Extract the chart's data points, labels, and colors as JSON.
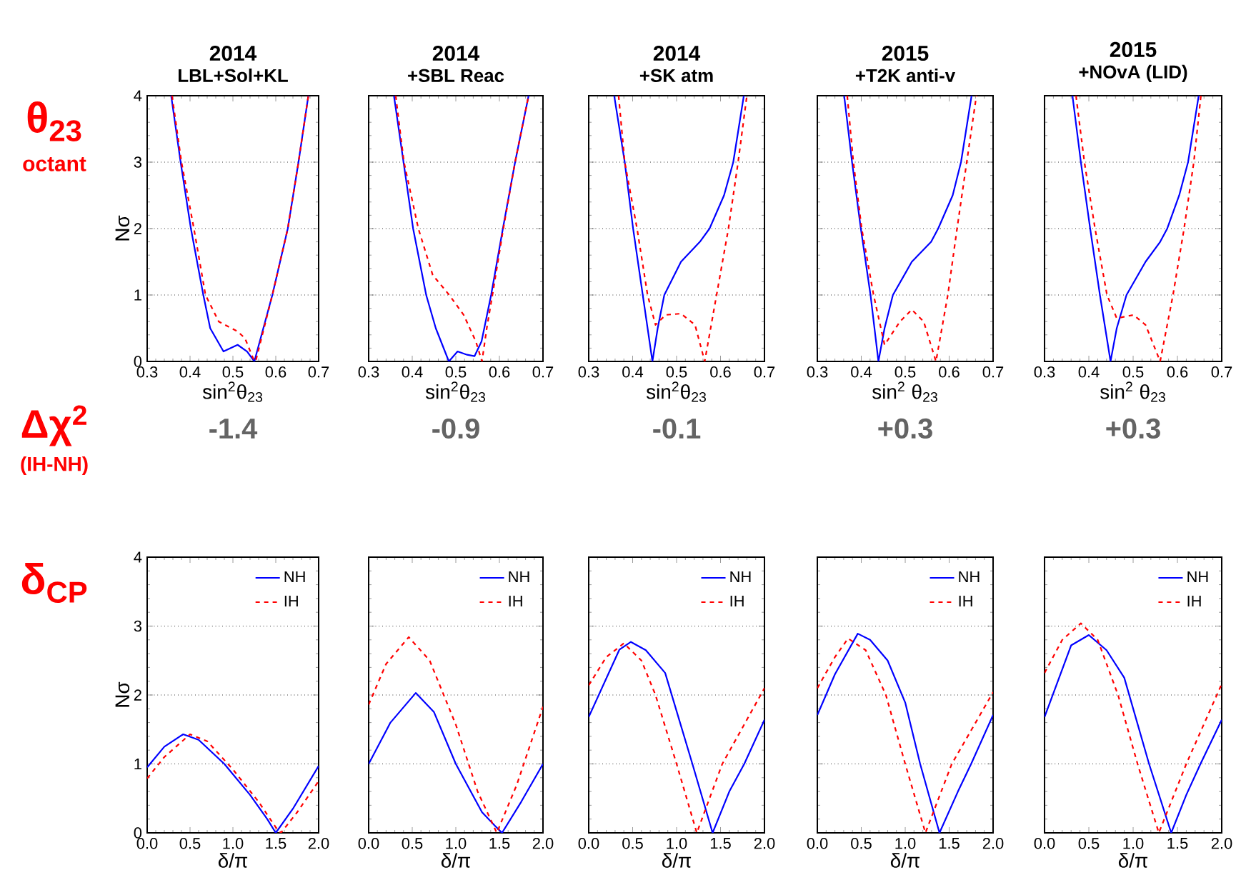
{
  "chart_data": [
    {
      "type": "line",
      "title": "2014",
      "subtitle": "LBL+Sol+KL",
      "xlabel": "sin$^{2}$θ$_{23}$",
      "ylabel": "Nσ",
      "xlim": [
        0.3,
        0.7
      ],
      "ylim": [
        0,
        4
      ],
      "xticks": [
        0.3,
        0.4,
        0.5,
        0.6,
        0.7
      ],
      "yticks": [
        0,
        1,
        2,
        3,
        4
      ],
      "grid": "y",
      "annotations": [
        "θ$_{23}$",
        "octant"
      ],
      "series": [
        {
          "color": "#0000ff",
          "x": [
            0.356,
            0.378,
            0.402,
            0.431,
            0.447,
            0.478,
            0.511,
            0.533,
            0.55,
            0.592,
            0.628,
            0.653,
            0.676
          ],
          "values": [
            4,
            3,
            2,
            1,
            0.5,
            0.15,
            0.25,
            0.15,
            0,
            1,
            2,
            3,
            4
          ]
        },
        {
          "color": "#ff0000",
          "line_style": "dashed",
          "x": [
            0.358,
            0.38,
            0.409,
            0.436,
            0.467,
            0.511,
            0.528,
            0.547,
            0.553,
            0.592,
            0.628,
            0.653,
            0.676
          ],
          "values": [
            4,
            3,
            2,
            1,
            0.6,
            0.45,
            0.35,
            0.05,
            0,
            1,
            2,
            3,
            4
          ]
        }
      ]
    },
    {
      "type": "line",
      "title": "2014",
      "subtitle": "+SBL Reac",
      "xlabel": "sin$^{2}$θ$_{23}$",
      "xlim": [
        0.3,
        0.7
      ],
      "ylim": [
        0,
        4
      ],
      "xticks": [
        0.3,
        0.4,
        0.5,
        0.6,
        0.7
      ],
      "yticks": [
        0,
        1,
        2,
        3,
        4
      ],
      "grid": "y",
      "tick_labels": "x",
      "series": [
        {
          "color": "#0000ff",
          "x": [
            0.358,
            0.38,
            0.402,
            0.432,
            0.454,
            0.484,
            0.504,
            0.526,
            0.543,
            0.559,
            0.581,
            0.608,
            0.636,
            0.667
          ],
          "values": [
            4,
            3,
            2,
            1,
            0.5,
            0,
            0.15,
            0.1,
            0.08,
            0.3,
            1,
            2,
            3,
            4
          ]
        },
        {
          "color": "#ff0000",
          "line_style": "dashed",
          "x": [
            0.362,
            0.381,
            0.414,
            0.447,
            0.485,
            0.518,
            0.546,
            0.56,
            0.571,
            0.584,
            0.609,
            0.636,
            0.667
          ],
          "values": [
            4,
            3,
            2,
            1.3,
            1.0,
            0.7,
            0.3,
            0,
            0.5,
            1,
            2,
            3,
            4
          ]
        }
      ]
    },
    {
      "type": "line",
      "title": "2014",
      "subtitle": "+SK atm",
      "xlabel": "sin$^{2}$θ$_{23}$",
      "xlim": [
        0.3,
        0.7
      ],
      "ylim": [
        0,
        4
      ],
      "xticks": [
        0.3,
        0.4,
        0.5,
        0.6,
        0.7
      ],
      "yticks": [
        0,
        1,
        2,
        3,
        4
      ],
      "grid": "y",
      "tick_labels": "x",
      "series": [
        {
          "color": "#0000ff",
          "x": [
            0.358,
            0.382,
            0.401,
            0.423,
            0.445,
            0.457,
            0.472,
            0.51,
            0.553,
            0.575,
            0.608,
            0.629,
            0.653
          ],
          "values": [
            4,
            3,
            2,
            1,
            0,
            0.5,
            1,
            1.5,
            1.8,
            2,
            2.5,
            3,
            4
          ]
        },
        {
          "color": "#ff0000",
          "line_style": "dashed",
          "x": [
            0.368,
            0.382,
            0.41,
            0.434,
            0.452,
            0.475,
            0.51,
            0.542,
            0.564,
            0.591,
            0.618,
            0.64,
            0.66
          ],
          "values": [
            4,
            3,
            2,
            1,
            0.55,
            0.7,
            0.72,
            0.55,
            0,
            1,
            2,
            3,
            4
          ]
        }
      ]
    },
    {
      "type": "line",
      "title": "2015",
      "subtitle": "+T2K anti-v",
      "xlabel": "sin$^{2}$ θ$_{23}$",
      "xlim": [
        0.3,
        0.7
      ],
      "ylim": [
        0,
        4
      ],
      "xticks": [
        0.3,
        0.4,
        0.5,
        0.6,
        0.7
      ],
      "yticks": [
        0,
        1,
        2,
        3,
        4
      ],
      "grid": "y",
      "tick_labels": "x",
      "series": [
        {
          "color": "#0000ff",
          "x": [
            0.361,
            0.379,
            0.399,
            0.421,
            0.439,
            0.453,
            0.472,
            0.515,
            0.559,
            0.575,
            0.608,
            0.627,
            0.651
          ],
          "values": [
            4,
            3,
            2,
            1,
            0,
            0.5,
            1,
            1.5,
            1.8,
            2,
            2.5,
            3,
            4
          ]
        },
        {
          "color": "#ff0000",
          "line_style": "dashed",
          "x": [
            0.368,
            0.382,
            0.401,
            0.428,
            0.453,
            0.488,
            0.515,
            0.542,
            0.57,
            0.597,
            0.618,
            0.64,
            0.662
          ],
          "values": [
            4,
            3,
            2,
            1,
            0.25,
            0.6,
            0.78,
            0.6,
            0,
            1,
            2,
            3,
            4
          ]
        }
      ]
    },
    {
      "type": "line",
      "title": "2015",
      "subtitle": "+NOvA (LID)",
      "xlabel": "sin$^{2}$ θ$_{23}$",
      "xlim": [
        0.3,
        0.7
      ],
      "ylim": [
        0,
        4
      ],
      "xticks": [
        0.3,
        0.4,
        0.5,
        0.6,
        0.7
      ],
      "yticks": [
        0,
        1,
        2,
        3,
        4
      ],
      "grid": "y",
      "tick_labels": "x",
      "series": [
        {
          "color": "#0000ff",
          "x": [
            0.363,
            0.382,
            0.403,
            0.425,
            0.449,
            0.463,
            0.485,
            0.528,
            0.561,
            0.577,
            0.604,
            0.624,
            0.648
          ],
          "values": [
            4,
            3,
            2,
            1,
            0,
            0.5,
            1,
            1.5,
            1.8,
            2,
            2.5,
            3,
            4
          ]
        },
        {
          "color": "#ff0000",
          "line_style": "dashed",
          "x": [
            0.371,
            0.39,
            0.414,
            0.441,
            0.463,
            0.501,
            0.528,
            0.561,
            0.59,
            0.615,
            0.637,
            0.653
          ],
          "values": [
            4,
            3,
            2,
            1,
            0.65,
            0.7,
            0.55,
            0,
            1,
            2,
            3,
            4
          ]
        }
      ]
    },
    {
      "type": "line",
      "xlabel": "δ/π",
      "ylabel": "Nσ",
      "xlim": [
        0,
        2
      ],
      "ylim": [
        0,
        4
      ],
      "xticks": [
        {
          "value": 0,
          "label": "0.0"
        },
        0.5,
        {
          "value": 1,
          "label": "1.0"
        },
        1.5,
        {
          "value": 2,
          "label": "2.0"
        }
      ],
      "yticks": [
        0,
        1,
        2,
        3,
        4
      ],
      "grid": "y",
      "legend": "top right",
      "annotations": [
        "δ$_{CP}$"
      ],
      "series": [
        {
          "name": "NH",
          "color": "#0000ff",
          "x": [
            0,
            0.2,
            0.42,
            0.6,
            0.9,
            1.2,
            1.4,
            1.5,
            1.7,
            2.0
          ],
          "values": [
            0.95,
            1.25,
            1.43,
            1.35,
            1.0,
            0.55,
            0.2,
            0,
            0.35,
            0.97
          ]
        },
        {
          "name": "IH",
          "color": "#ff0000",
          "line_style": "dashed",
          "x": [
            0,
            0.2,
            0.5,
            0.7,
            1.0,
            1.3,
            1.5,
            1.56,
            1.75,
            2.0
          ],
          "values": [
            0.79,
            1.1,
            1.43,
            1.33,
            0.92,
            0.45,
            0.08,
            0,
            0.3,
            0.75
          ]
        }
      ]
    },
    {
      "type": "line",
      "xlabel": "δ/π",
      "xlim": [
        0,
        2
      ],
      "ylim": [
        0,
        4
      ],
      "xticks": [
        {
          "value": 0,
          "label": "0.0"
        },
        0.5,
        {
          "value": 1,
          "label": "1.0"
        },
        1.5,
        {
          "value": 2,
          "label": "2.0"
        }
      ],
      "yticks": [
        0,
        1,
        2,
        3,
        4
      ],
      "grid": "y",
      "legend": "top right",
      "tick_labels": "x",
      "series": [
        {
          "name": "NH",
          "color": "#0000ff",
          "x": [
            0,
            0.25,
            0.54,
            0.75,
            1.0,
            1.3,
            1.45,
            1.53,
            1.75,
            2.0
          ],
          "values": [
            1.0,
            1.6,
            2.03,
            1.75,
            1.0,
            0.3,
            0.1,
            0,
            0.45,
            1.0
          ]
        },
        {
          "name": "IH",
          "color": "#ff0000",
          "line_style": "dashed",
          "x": [
            0,
            0.2,
            0.46,
            0.7,
            1.0,
            1.25,
            1.47,
            1.7,
            2.0
          ],
          "values": [
            1.86,
            2.45,
            2.84,
            2.5,
            1.57,
            0.6,
            0,
            0.7,
            1.83
          ]
        }
      ]
    },
    {
      "type": "line",
      "xlabel": "δ/π",
      "xlim": [
        0,
        2
      ],
      "ylim": [
        0,
        4
      ],
      "xticks": [
        {
          "value": 0,
          "label": "0.0"
        },
        0.5,
        {
          "value": 1,
          "label": "1.0"
        },
        1.5,
        {
          "value": 2,
          "label": "2.0"
        }
      ],
      "yticks": [
        0,
        1,
        2,
        3,
        4
      ],
      "grid": "y",
      "legend": "top right",
      "tick_labels": "x",
      "series": [
        {
          "name": "NH",
          "color": "#0000ff",
          "x": [
            0,
            0.35,
            0.48,
            0.65,
            0.87,
            1.18,
            1.41,
            1.6,
            1.77,
            2.0
          ],
          "values": [
            1.68,
            2.66,
            2.77,
            2.65,
            2.32,
            1.0,
            0,
            0.6,
            1.0,
            1.64
          ]
        },
        {
          "name": "IH",
          "color": "#ff0000",
          "line_style": "dashed",
          "x": [
            0,
            0.2,
            0.4,
            0.6,
            0.76,
            1.0,
            1.23,
            1.52,
            2.0
          ],
          "values": [
            2.14,
            2.55,
            2.75,
            2.5,
            2.0,
            1.0,
            0,
            1.0,
            2.1
          ]
        }
      ]
    },
    {
      "type": "line",
      "xlabel": "δ/π",
      "xlim": [
        0,
        2
      ],
      "ylim": [
        0,
        4
      ],
      "xticks": [
        {
          "value": 0,
          "label": "0.0"
        },
        0.5,
        {
          "value": 1,
          "label": "1.0"
        },
        1.5,
        {
          "value": 2,
          "label": "2.0"
        }
      ],
      "yticks": [
        0,
        1,
        2,
        3,
        4
      ],
      "grid": "y",
      "legend": "top right",
      "tick_labels": "x",
      "series": [
        {
          "name": "NH",
          "color": "#0000ff",
          "x": [
            0,
            0.2,
            0.46,
            0.6,
            0.8,
            1.0,
            1.17,
            1.39,
            1.6,
            1.75,
            2.0
          ],
          "values": [
            1.71,
            2.3,
            2.89,
            2.8,
            2.5,
            1.89,
            1.0,
            0,
            0.6,
            1.0,
            1.71
          ]
        },
        {
          "name": "IH",
          "color": "#ff0000",
          "line_style": "dashed",
          "x": [
            0,
            0.2,
            0.35,
            0.55,
            0.78,
            1.0,
            1.23,
            1.53,
            2.0
          ],
          "values": [
            2.1,
            2.55,
            2.82,
            2.65,
            2.0,
            1.0,
            0,
            1.0,
            2.04
          ]
        }
      ]
    },
    {
      "type": "line",
      "xlabel": "δ/π",
      "xlim": [
        0,
        2
      ],
      "ylim": [
        0,
        4
      ],
      "xticks": [
        {
          "value": 0,
          "label": "0.0"
        },
        0.5,
        {
          "value": 1,
          "label": "1.0"
        },
        1.5,
        {
          "value": 2,
          "label": "2.0"
        }
      ],
      "yticks": [
        0,
        1,
        2,
        3,
        4
      ],
      "grid": "y",
      "legend": "top right",
      "tick_labels": "x",
      "series": [
        {
          "name": "NH",
          "color": "#0000ff",
          "x": [
            0,
            0.3,
            0.5,
            0.7,
            0.9,
            1.18,
            1.43,
            1.6,
            1.76,
            2.0
          ],
          "values": [
            1.68,
            2.72,
            2.87,
            2.65,
            2.25,
            1.0,
            0,
            0.55,
            1.0,
            1.64
          ]
        },
        {
          "name": "IH",
          "color": "#ff0000",
          "line_style": "dashed",
          "x": [
            0,
            0.2,
            0.41,
            0.6,
            0.83,
            1.05,
            1.29,
            1.6,
            2.0
          ],
          "values": [
            2.32,
            2.8,
            3.04,
            2.8,
            2.0,
            1.0,
            0,
            1.0,
            2.16
          ]
        }
      ]
    },
    {
      "type": "other",
      "title": "Δχ$^{2}$",
      "subtitle": "(IH-NH)",
      "annotations": [
        "-1.4",
        "-0.9",
        "-0.1",
        "+0.3",
        "+0.3"
      ]
    }
  ]
}
